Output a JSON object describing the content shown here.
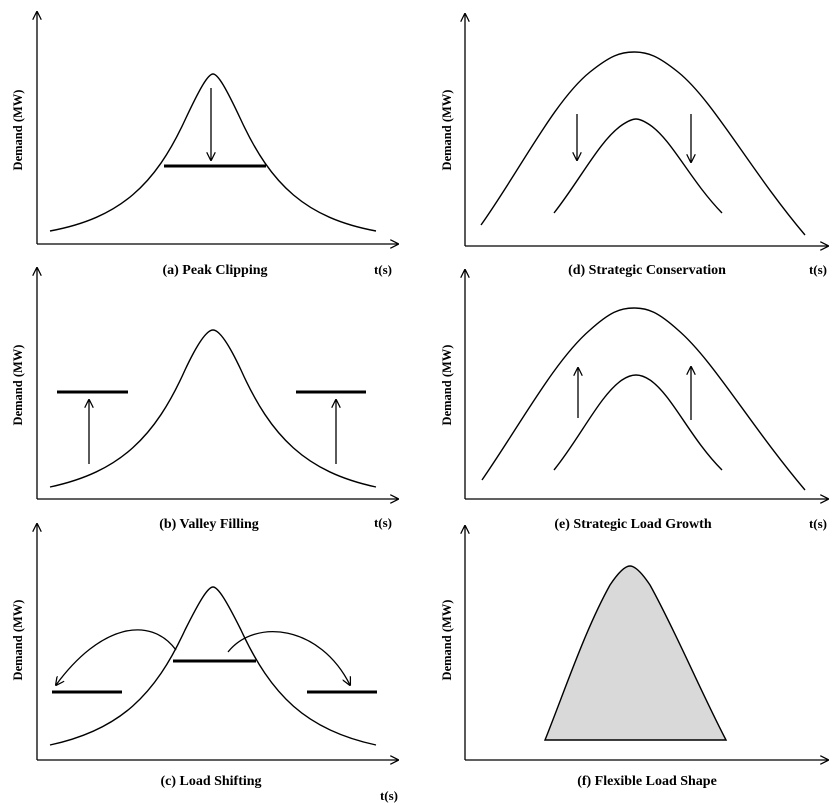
{
  "ylabel": "Demand (MW)",
  "xlabel": "t(s)",
  "panels": [
    {
      "caption": "(a)  Peak Clipping"
    },
    {
      "caption": "(b)  Valley Filling"
    },
    {
      "caption": "(c)  Load Shifting"
    },
    {
      "caption": "(d)  Strategic Conservation"
    },
    {
      "caption": "(e)  Strategic Load Growth"
    },
    {
      "caption": "(f)  Flexible Load Shape"
    }
  ],
  "colors": {
    "fill": "#d9d9d9",
    "line": "#000000"
  }
}
